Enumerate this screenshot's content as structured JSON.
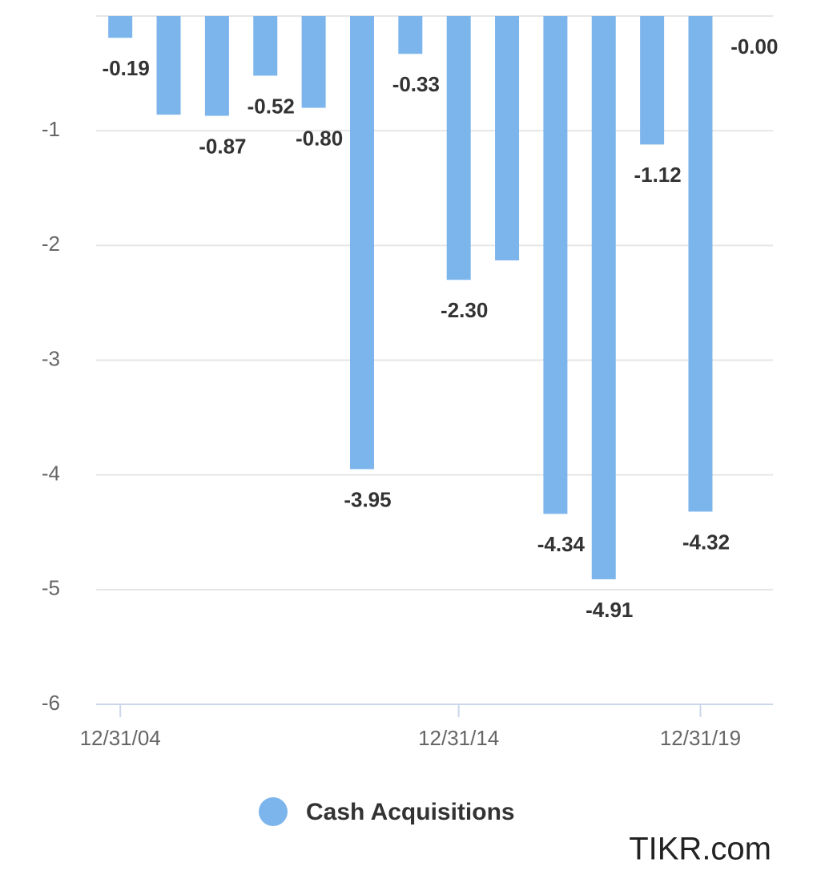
{
  "chart_data": {
    "type": "bar",
    "categories": [
      "12/31/04",
      null,
      null,
      null,
      null,
      null,
      null,
      "12/31/14",
      null,
      null,
      null,
      null,
      "12/31/19",
      null
    ],
    "series": [
      {
        "name": "Cash Acquisitions",
        "color": "#7cb5ec",
        "values": [
          -0.19,
          -0.86,
          -0.87,
          -0.52,
          -0.8,
          -3.95,
          -0.33,
          -2.3,
          -2.13,
          -4.34,
          -4.91,
          -1.12,
          -4.32,
          0
        ],
        "value_labels": [
          "-0.19",
          null,
          "-0.87",
          "-0.52",
          "-0.80",
          "-3.95",
          "-0.33",
          "-2.30",
          null,
          "-4.34",
          "-4.91",
          "-1.12",
          "-4.32",
          "-0.00"
        ]
      }
    ],
    "ylim": [
      -6,
      0
    ],
    "yticks": [
      -6,
      -5,
      -4,
      -3,
      -2,
      -1
    ],
    "grid": true,
    "legend": "bottom",
    "watermark": "TIKR.com"
  }
}
